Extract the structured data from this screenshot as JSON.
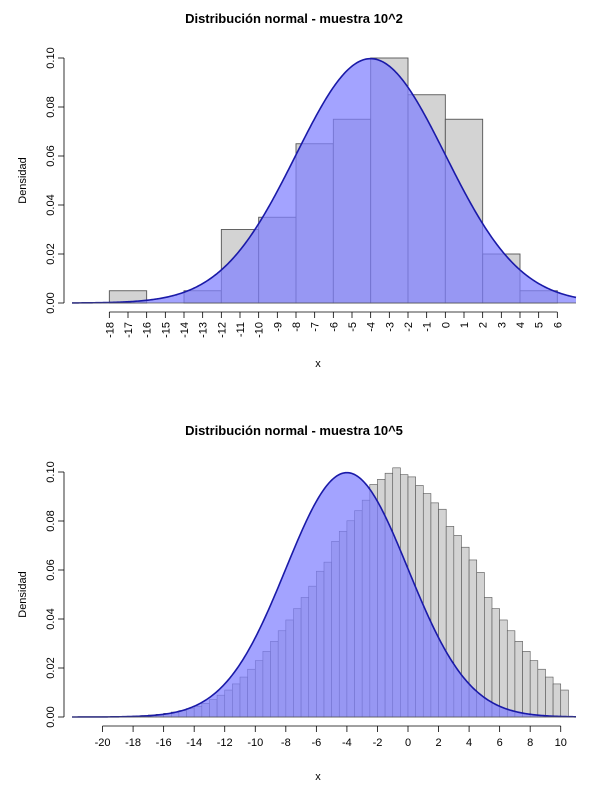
{
  "chart_data": [
    {
      "type": "bar",
      "title": "Distribución normal - muestra 10^2",
      "xlabel": "x",
      "ylabel": "Densidad",
      "xlim": [
        -20,
        7
      ],
      "ylim": [
        0,
        0.1
      ],
      "x_ticks": [
        -18,
        -17,
        -16,
        -15,
        -14,
        -13,
        -12,
        -11,
        -10,
        -9,
        -8,
        -7,
        -6,
        -5,
        -4,
        -3,
        -2,
        -1,
        0,
        1,
        2,
        3,
        4,
        5,
        6
      ],
      "x_tick_labels": [
        "-18",
        "-17",
        "-16",
        "-15",
        "-14",
        "-13",
        "-12",
        "-11",
        "-10",
        "-9",
        "-8",
        "-7",
        "-6",
        "-5",
        "-4",
        "-3",
        "-2",
        "-1",
        "0",
        "1",
        "2",
        "3",
        "4",
        "5",
        "6"
      ],
      "y_ticks": [
        0,
        0.02,
        0.04,
        0.06,
        0.08,
        0.1
      ],
      "y_tick_labels": [
        "0.00",
        "0.02",
        "0.04",
        "0.06",
        "0.08",
        "0.10"
      ],
      "x_tick_orientation": "vertical",
      "bins": [
        {
          "x0": -18,
          "x1": -16,
          "value": 0.005
        },
        {
          "x0": -16,
          "x1": -14,
          "value": 0.0
        },
        {
          "x0": -14,
          "x1": -12,
          "value": 0.005
        },
        {
          "x0": -12,
          "x1": -10,
          "value": 0.03
        },
        {
          "x0": -10,
          "x1": -8,
          "value": 0.035
        },
        {
          "x0": -8,
          "x1": -6,
          "value": 0.065
        },
        {
          "x0": -6,
          "x1": -4,
          "value": 0.075
        },
        {
          "x0": -4,
          "x1": -2,
          "value": 0.1
        },
        {
          "x0": -2,
          "x1": 0,
          "value": 0.085
        },
        {
          "x0": 0,
          "x1": 2,
          "value": 0.075
        },
        {
          "x0": 2,
          "x1": 4,
          "value": 0.02
        },
        {
          "x0": 4,
          "x1": 6,
          "value": 0.005
        }
      ],
      "density_curve": {
        "type": "normal",
        "mean": -4,
        "sd": 4
      },
      "colors": {
        "bars": "#d3d3d3",
        "bar_border": "#555555",
        "fill": "#8080ff",
        "line": "#1a1aa8"
      },
      "grid": false,
      "legend": "none"
    },
    {
      "type": "bar",
      "title": "Distribución normal - muestra 10^5",
      "xlabel": "x",
      "ylabel": "Densidad",
      "xlim": [
        -22,
        11
      ],
      "ylim": [
        0,
        0.1
      ],
      "x_ticks": [
        -20,
        -18,
        -16,
        -14,
        -12,
        -10,
        -8,
        -6,
        -4,
        -2,
        0,
        2,
        4,
        6,
        8,
        10
      ],
      "x_tick_labels": [
        "-20",
        "-18",
        "-16",
        "-14",
        "-12",
        "-10",
        "-8",
        "-6",
        "-4",
        "-2",
        "0",
        "2",
        "4",
        "6",
        "8",
        "10"
      ],
      "y_ticks": [
        0,
        0.02,
        0.04,
        0.06,
        0.08,
        0.1
      ],
      "y_tick_labels": [
        "0.00",
        "0.02",
        "0.04",
        "0.06",
        "0.08",
        "0.10"
      ],
      "x_tick_orientation": "horizontal",
      "bin_width": 0.5,
      "bin_range": [
        -20,
        10.5
      ],
      "bin_values": [
        0.0001,
        0.0002,
        0.0002,
        0.0003,
        0.0004,
        0.0006,
        0.0008,
        0.0011,
        0.0015,
        0.002,
        0.0026,
        0.0034,
        0.0044,
        0.0056,
        0.0071,
        0.0089,
        0.011,
        0.0135,
        0.0163,
        0.0195,
        0.023,
        0.0268,
        0.0309,
        0.0352,
        0.0396,
        0.0442,
        0.0488,
        0.0534,
        0.0595,
        0.0632,
        0.0717,
        0.0758,
        0.0801,
        0.0842,
        0.0885,
        0.0949,
        0.097,
        0.0995,
        0.1017,
        0.0989,
        0.098,
        0.0945,
        0.0912,
        0.0874,
        0.0848,
        0.0778,
        0.0741,
        0.0693,
        0.0641,
        0.059,
        0.0488,
        0.0442,
        0.0396,
        0.0352,
        0.0309,
        0.0268,
        0.023,
        0.0195,
        0.0163,
        0.0135,
        0.011
      ],
      "density_curve": {
        "type": "normal",
        "mean": -4,
        "sd": 4
      },
      "colors": {
        "bars": "#d3d3d3",
        "bar_border": "#555555",
        "fill": "#8080ff",
        "line": "#1a1aa8"
      },
      "grid": false,
      "legend": "none"
    }
  ]
}
